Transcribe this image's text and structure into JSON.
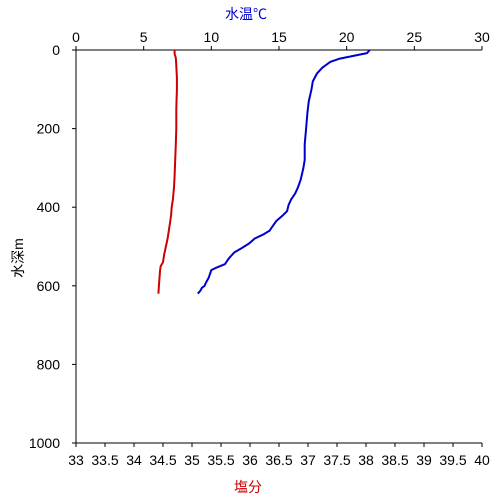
{
  "chart_data": {
    "type": "line",
    "top_axis": {
      "label": "水温℃",
      "color": "#0000cc",
      "range": [
        0,
        30
      ],
      "ticks": [
        0,
        5,
        10,
        15,
        20,
        25,
        30
      ]
    },
    "bottom_axis": {
      "label": "塩分",
      "color": "#cc0000",
      "range": [
        33,
        40
      ],
      "ticks": [
        "33",
        "33.5",
        "34",
        "34.5",
        "35",
        "35.5",
        "36",
        "36.5",
        "37",
        "37.5",
        "38",
        "38.5",
        "39",
        "39.5",
        "40"
      ]
    },
    "y_axis": {
      "label": "水深m",
      "range": [
        0,
        1000
      ],
      "inverted": true,
      "ticks": [
        0,
        200,
        400,
        600,
        800,
        1000
      ]
    },
    "grid": false,
    "series": [
      {
        "color": "#0000cc",
        "x_axis": "top",
        "points": [
          [
            21.7,
            0
          ],
          [
            21.5,
            8
          ],
          [
            20.5,
            15
          ],
          [
            19.5,
            22
          ],
          [
            18.8,
            30
          ],
          [
            18.2,
            45
          ],
          [
            17.8,
            60
          ],
          [
            17.5,
            80
          ],
          [
            17.4,
            100
          ],
          [
            17.2,
            130
          ],
          [
            17.1,
            160
          ],
          [
            17.0,
            200
          ],
          [
            16.9,
            240
          ],
          [
            16.9,
            280
          ],
          [
            16.8,
            300
          ],
          [
            16.6,
            330
          ],
          [
            16.4,
            350
          ],
          [
            16.2,
            365
          ],
          [
            15.9,
            380
          ],
          [
            15.7,
            395
          ],
          [
            15.6,
            410
          ],
          [
            15.3,
            420
          ],
          [
            14.8,
            435
          ],
          [
            14.5,
            450
          ],
          [
            14.3,
            460
          ],
          [
            13.8,
            470
          ],
          [
            13.2,
            480
          ],
          [
            12.8,
            492
          ],
          [
            12.2,
            505
          ],
          [
            11.7,
            515
          ],
          [
            11.3,
            530
          ],
          [
            11.0,
            545
          ],
          [
            10.3,
            555
          ],
          [
            10.0,
            560
          ],
          [
            9.9,
            570
          ],
          [
            9.8,
            580
          ],
          [
            9.6,
            592
          ],
          [
            9.5,
            600
          ],
          [
            9.3,
            605
          ],
          [
            9.2,
            612
          ],
          [
            9.0,
            620
          ]
        ]
      },
      {
        "color": "#cc0000",
        "x_axis": "bottom",
        "points": [
          [
            34.7,
            0
          ],
          [
            34.7,
            10
          ],
          [
            34.72,
            20
          ],
          [
            34.73,
            40
          ],
          [
            34.74,
            70
          ],
          [
            34.74,
            100
          ],
          [
            34.73,
            150
          ],
          [
            34.73,
            200
          ],
          [
            34.72,
            240
          ],
          [
            34.71,
            280
          ],
          [
            34.7,
            320
          ],
          [
            34.69,
            350
          ],
          [
            34.67,
            380
          ],
          [
            34.65,
            400
          ],
          [
            34.64,
            420
          ],
          [
            34.62,
            440
          ],
          [
            34.6,
            460
          ],
          [
            34.58,
            480
          ],
          [
            34.55,
            500
          ],
          [
            34.52,
            520
          ],
          [
            34.5,
            540
          ],
          [
            34.46,
            550
          ],
          [
            34.45,
            560
          ],
          [
            34.44,
            580
          ],
          [
            34.43,
            600
          ],
          [
            34.42,
            620
          ]
        ]
      }
    ]
  }
}
